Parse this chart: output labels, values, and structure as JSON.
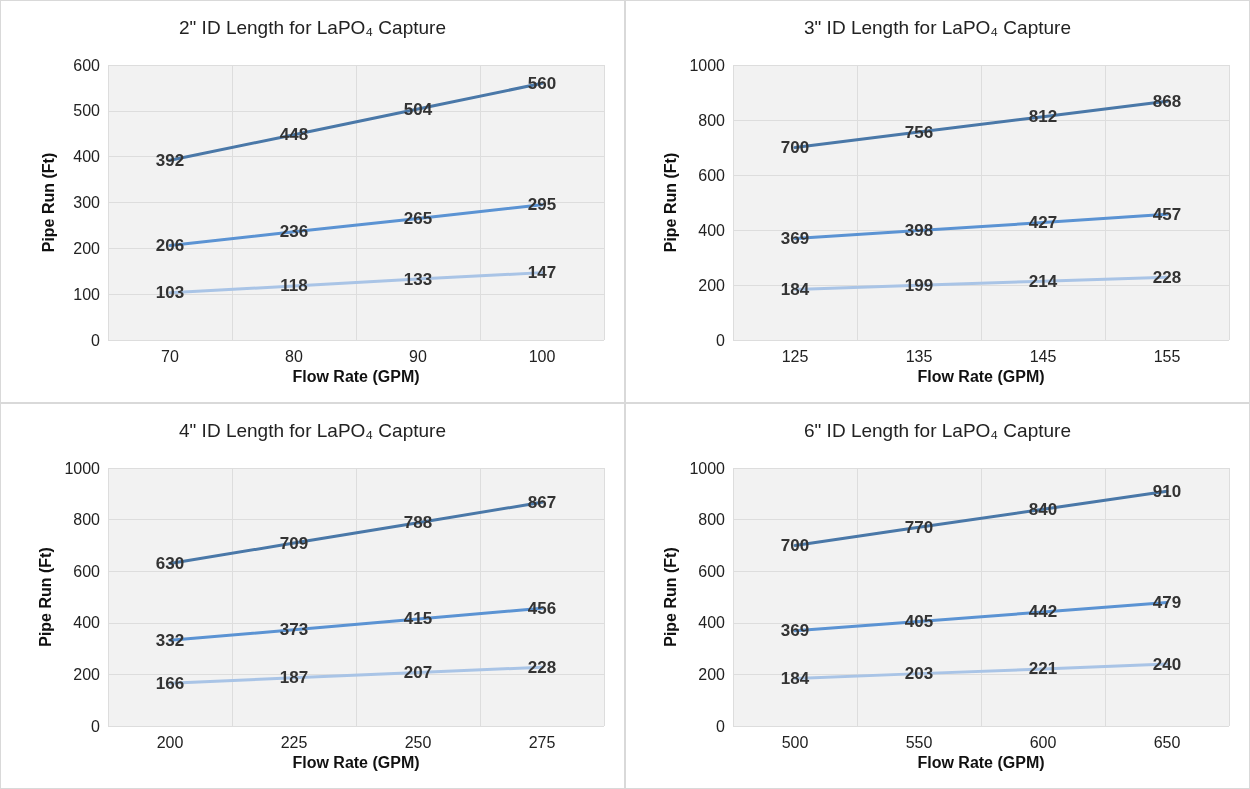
{
  "chart_data": [
    {
      "type": "line",
      "title": "2\" ID Length for LaPO₄ Capture",
      "xlabel": "Flow Rate (GPM)",
      "ylabel": "Pipe Run (Ft)",
      "categories": [
        "70",
        "80",
        "90",
        "100"
      ],
      "ylim": [
        0,
        600
      ],
      "yticks": [
        0,
        100,
        200,
        300,
        400,
        500,
        600
      ],
      "grid": true,
      "data_labels": true,
      "marker": "none",
      "series": [
        {
          "color": "#4a78a8",
          "values": [
            392,
            448,
            504,
            560
          ]
        },
        {
          "color": "#5b93d3",
          "values": [
            206,
            236,
            265,
            295
          ]
        },
        {
          "color": "#a9c4e6",
          "values": [
            103,
            118,
            133,
            147
          ]
        }
      ]
    },
    {
      "type": "line",
      "title": "3\" ID Length for LaPO₄ Capture",
      "xlabel": "Flow Rate (GPM)",
      "ylabel": "Pipe Run (Ft)",
      "categories": [
        "125",
        "135",
        "145",
        "155"
      ],
      "ylim": [
        0,
        1000
      ],
      "yticks": [
        0,
        200,
        400,
        600,
        800,
        1000
      ],
      "grid": true,
      "data_labels": true,
      "marker": "none",
      "series": [
        {
          "color": "#4a78a8",
          "values": [
            700,
            756,
            812,
            868
          ]
        },
        {
          "color": "#5b93d3",
          "values": [
            369,
            398,
            427,
            457
          ]
        },
        {
          "color": "#a9c4e6",
          "values": [
            184,
            199,
            214,
            228
          ]
        }
      ]
    },
    {
      "type": "line",
      "title": "4\" ID Length for LaPO₄ Capture",
      "xlabel": "Flow Rate (GPM)",
      "ylabel": "Pipe Run (Ft)",
      "categories": [
        "200",
        "225",
        "250",
        "275"
      ],
      "ylim": [
        0,
        1000
      ],
      "yticks": [
        0,
        200,
        400,
        600,
        800,
        1000
      ],
      "grid": true,
      "data_labels": true,
      "marker": "none",
      "series": [
        {
          "color": "#4a78a8",
          "values": [
            630,
            709,
            788,
            867
          ]
        },
        {
          "color": "#5b93d3",
          "values": [
            332,
            373,
            415,
            456
          ]
        },
        {
          "color": "#a9c4e6",
          "values": [
            166,
            187,
            207,
            228
          ]
        }
      ]
    },
    {
      "type": "line",
      "title": "6\" ID Length for LaPO₄ Capture",
      "xlabel": "Flow Rate (GPM)",
      "ylabel": "Pipe Run (Ft)",
      "categories": [
        "500",
        "550",
        "600",
        "650"
      ],
      "ylim": [
        0,
        1000
      ],
      "yticks": [
        0,
        200,
        400,
        600,
        800,
        1000
      ],
      "grid": true,
      "data_labels": true,
      "marker": "none",
      "series": [
        {
          "color": "#4a78a8",
          "values": [
            700,
            770,
            840,
            910
          ]
        },
        {
          "color": "#5b93d3",
          "values": [
            369,
            405,
            442,
            479
          ]
        },
        {
          "color": "#a9c4e6",
          "values": [
            184,
            203,
            221,
            240
          ]
        }
      ]
    }
  ]
}
